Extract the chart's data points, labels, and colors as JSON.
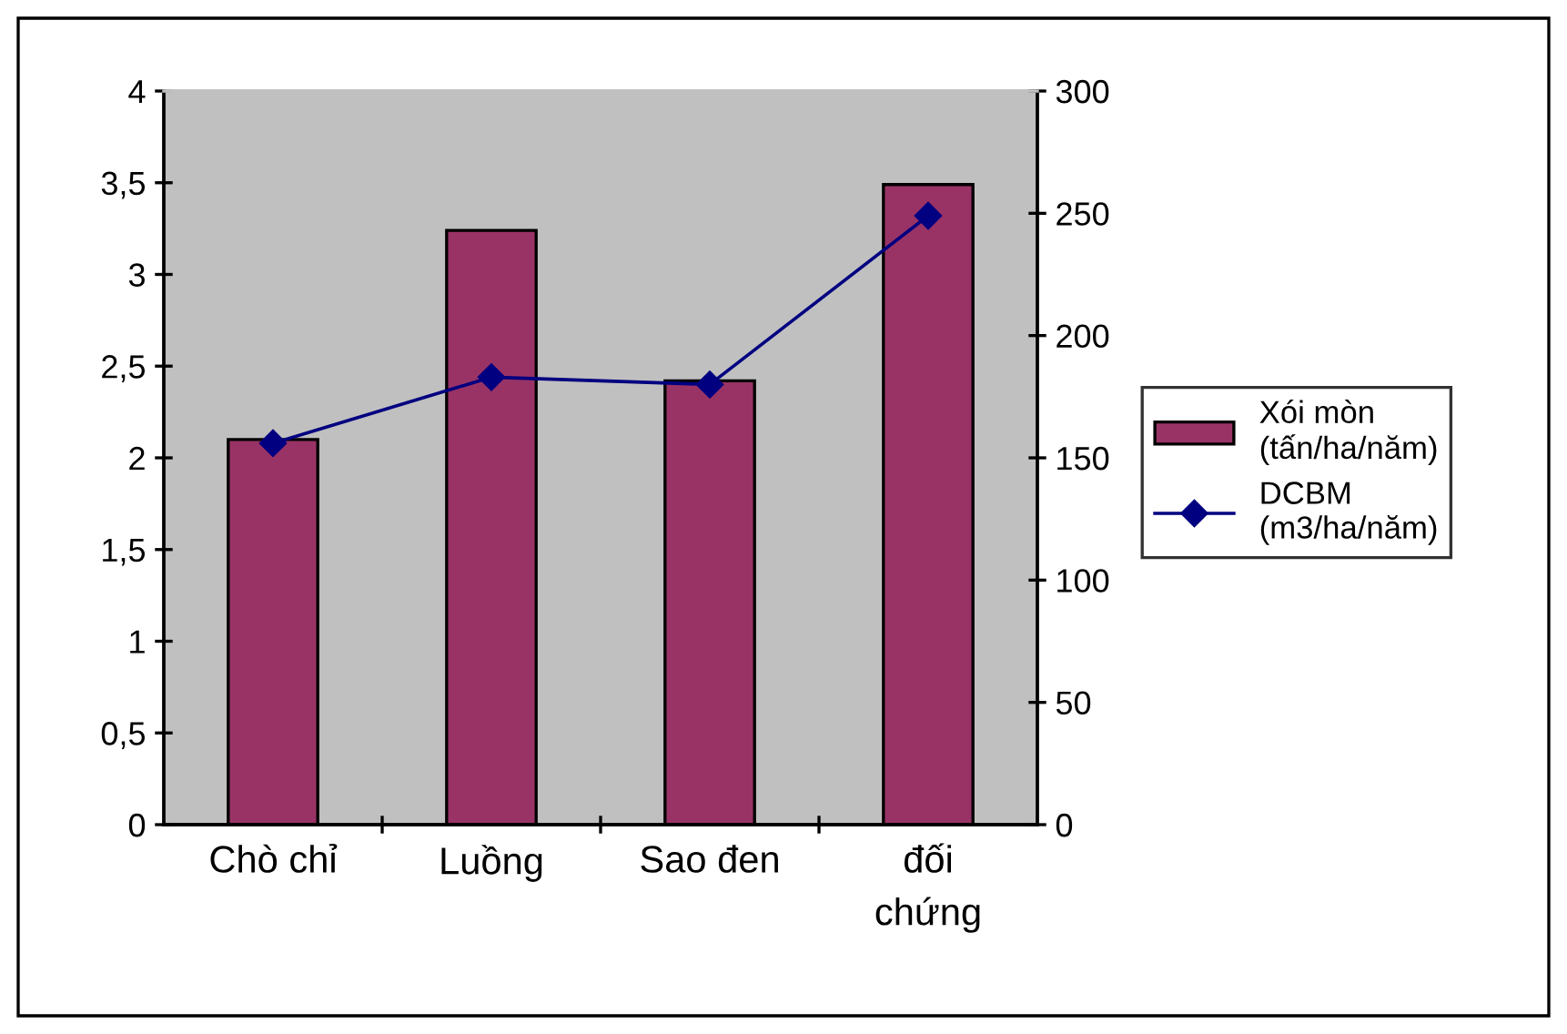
{
  "chart_data": {
    "type": "bar",
    "categories": [
      "Chò chỉ",
      "Luồng",
      "Sao đen",
      "đối\nchứng"
    ],
    "series": [
      {
        "name": "Xói mòn\n(tấn/ha/năm)",
        "color": "#993366",
        "values": [
          2.1,
          3.24,
          2.42,
          3.49
        ]
      },
      {
        "name": "DCBM\n(m3/ha/năm)",
        "type": "line",
        "axis": "y2",
        "color": "#000080",
        "marker": "diamond",
        "values": [
          156,
          183,
          180,
          249
        ]
      }
    ],
    "ylim": [
      0,
      4
    ],
    "yticks": [
      0,
      {
        "value": 0.5,
        "label": "0,5"
      },
      1,
      {
        "value": 1.5,
        "label": "1,5"
      },
      2,
      {
        "value": 2.5,
        "label": "2,5"
      },
      3,
      {
        "value": 3.5,
        "label": "3,5"
      },
      4
    ],
    "y2lim": [
      0,
      300
    ],
    "y2ticks": [
      0,
      50,
      100,
      150,
      200,
      250,
      300
    ],
    "grid": false,
    "legend": "right"
  }
}
